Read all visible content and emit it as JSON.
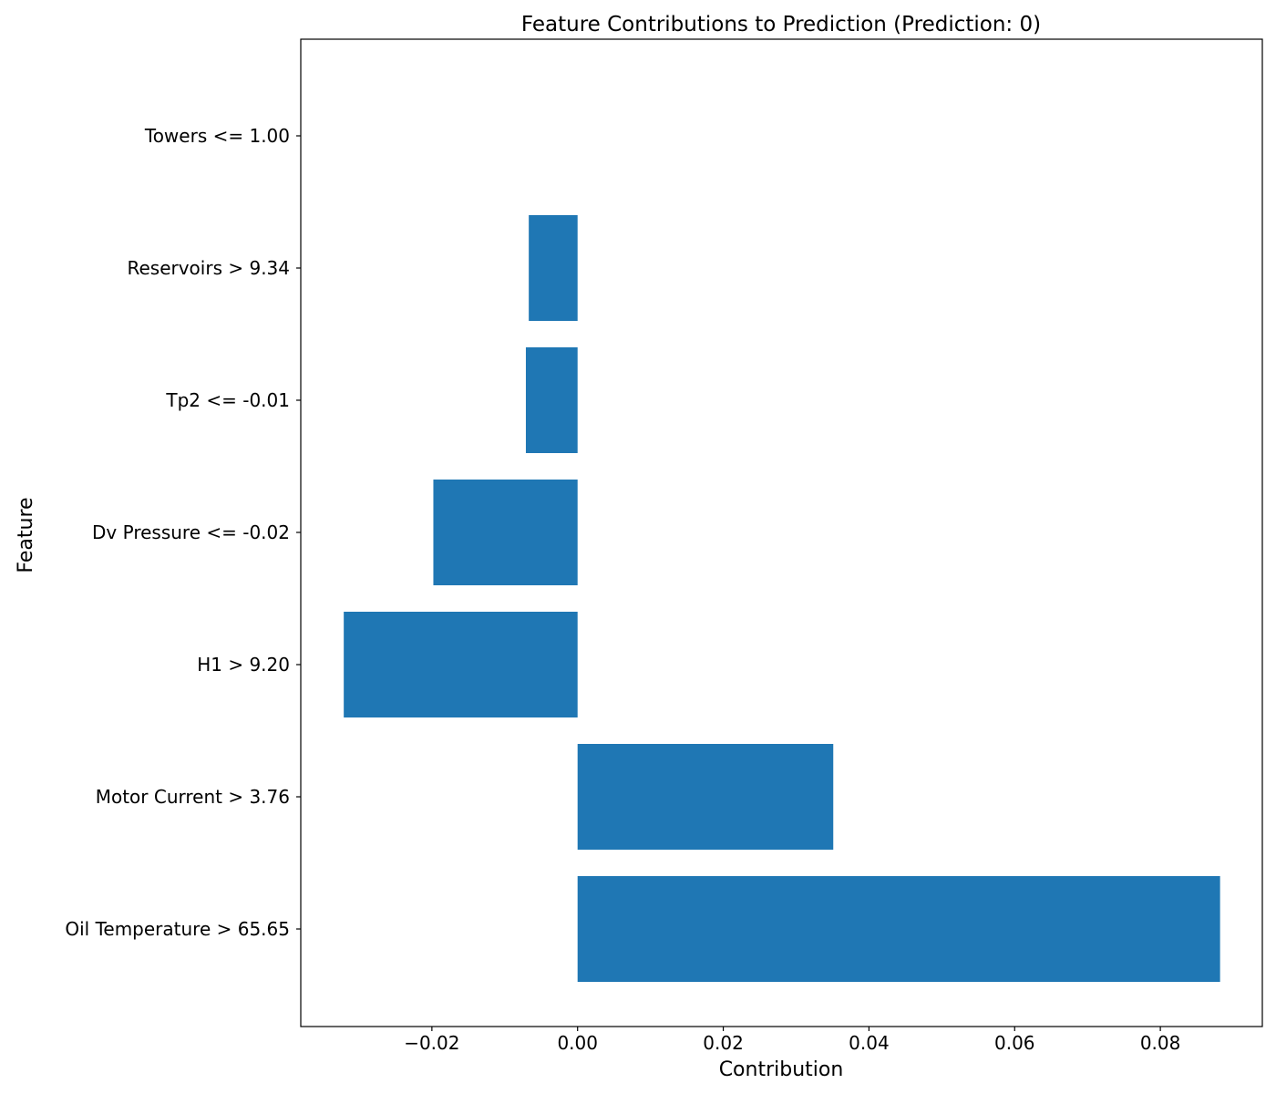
{
  "chart_data": {
    "type": "bar",
    "orientation": "horizontal",
    "title": "Feature Contributions to Prediction (Prediction: 0)",
    "xlabel": "Contribution",
    "ylabel": "Feature",
    "categories": [
      "Oil Temperature > 65.65",
      "Motor Current > 3.76",
      "H1 > 9.20",
      "Dv Pressure <= -0.02",
      "Tp2 <= -0.01",
      "Reservoirs > 9.34",
      "Towers <= 1.00"
    ],
    "values": [
      0.0882,
      0.0351,
      -0.0321,
      -0.0198,
      -0.0071,
      -0.0067,
      0.0
    ],
    "xlim": [
      -0.038,
      0.094
    ],
    "xticks": [
      -0.02,
      0.0,
      0.02,
      0.04,
      0.06,
      0.08
    ],
    "xtick_labels": [
      "−0.02",
      "0.00",
      "0.02",
      "0.04",
      "0.06",
      "0.08"
    ],
    "bar_color": "#1f77b4",
    "grid": false,
    "legend": "none"
  }
}
